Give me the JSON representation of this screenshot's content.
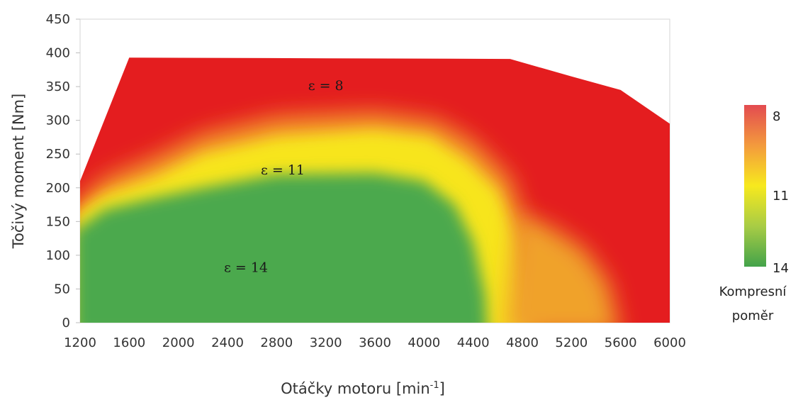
{
  "chart_data": {
    "type": "heatmap",
    "xlabel_base": "Otáčky motoru [min",
    "xlabel_sup": "-1",
    "xlabel_end": "]",
    "ylabel": "Točivý moment [Nm]",
    "xlim": [
      1200,
      6000
    ],
    "ylim": [
      0,
      450
    ],
    "x_ticks": [
      "1200",
      "1600",
      "2000",
      "2400",
      "2800",
      "3200",
      "3600",
      "4000",
      "4400",
      "4800",
      "5200",
      "5600",
      "6000"
    ],
    "y_ticks": [
      "0",
      "50",
      "100",
      "150",
      "200",
      "250",
      "300",
      "350",
      "400",
      "450"
    ],
    "grid": false,
    "boundary": [
      {
        "x": 1200,
        "y": 0
      },
      {
        "x": 1200,
        "y": 210
      },
      {
        "x": 1600,
        "y": 393
      },
      {
        "x": 3200,
        "y": 392
      },
      {
        "x": 4700,
        "y": 391
      },
      {
        "x": 5200,
        "y": 365
      },
      {
        "x": 5600,
        "y": 345
      },
      {
        "x": 5800,
        "y": 320
      },
      {
        "x": 6000,
        "y": 295
      },
      {
        "x": 6000,
        "y": 0
      }
    ],
    "zones": [
      {
        "label": "ε = 8",
        "value": 8,
        "x": 3200,
        "y": 345
      },
      {
        "label": "ε = 11",
        "value": 11,
        "x": 2850,
        "y": 220
      },
      {
        "label": "ε = 14",
        "value": 14,
        "x": 2550,
        "y": 75
      }
    ],
    "legend": {
      "placement": "right",
      "title_line1": "Kompresní",
      "title_line2": "poměr",
      "labels": [
        "8",
        "11",
        "14"
      ],
      "colors": [
        "#e34b50",
        "#f7e91e",
        "#43a34a"
      ]
    }
  }
}
